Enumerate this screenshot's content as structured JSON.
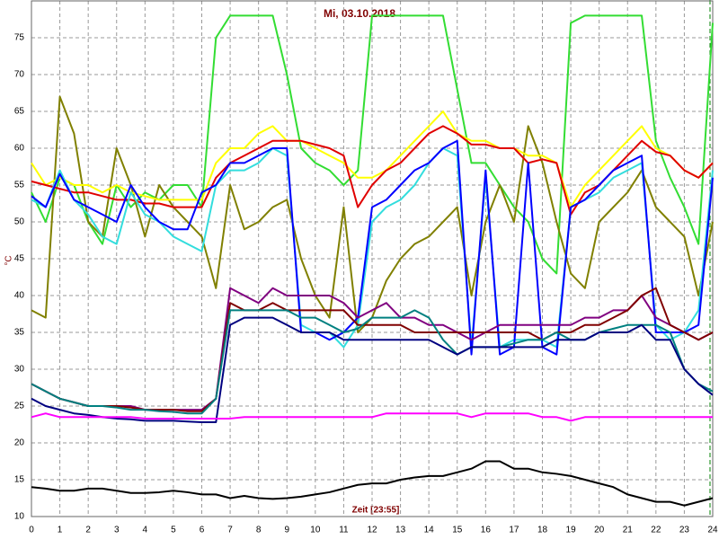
{
  "chart_data": {
    "type": "line",
    "title": "Mi, 03.10.2018",
    "x_label": "Zeit [23:55]",
    "y_label": "°C",
    "x": [
      0,
      0.5,
      1,
      1.5,
      2,
      2.5,
      3,
      3.5,
      4,
      4.5,
      5,
      5.5,
      6,
      6.5,
      7,
      7.5,
      8,
      8.5,
      9,
      9.5,
      10,
      10.5,
      11,
      11.5,
      12,
      12.5,
      13,
      13.5,
      14,
      14.5,
      15,
      15.5,
      16,
      16.5,
      17,
      17.5,
      18,
      18.5,
      19,
      19.5,
      20,
      20.5,
      21,
      21.5,
      22,
      22.5,
      23,
      23.5,
      24
    ],
    "xlim": [
      0,
      24
    ],
    "xticks": [
      0,
      1,
      2,
      3,
      4,
      5,
      6,
      7,
      8,
      9,
      10,
      11,
      12,
      13,
      14,
      15,
      16,
      17,
      18,
      19,
      20,
      21,
      22,
      23,
      24
    ],
    "ylim": [
      10,
      80
    ],
    "yticks": [
      10,
      15,
      20,
      25,
      30,
      35,
      40,
      45,
      50,
      55,
      60,
      65,
      70,
      75
    ],
    "grid": true,
    "series": [
      {
        "color": "#33dd33",
        "values": [
          54,
          50,
          56,
          55,
          50,
          47,
          55,
          52,
          54,
          53,
          55,
          55,
          52,
          75,
          78,
          78,
          78,
          78,
          70,
          60,
          58,
          57,
          55,
          57,
          78,
          78,
          78,
          78,
          78,
          78,
          68,
          58,
          58,
          55,
          52,
          50,
          45,
          43,
          77,
          78,
          78,
          78,
          78,
          78,
          61,
          56,
          52,
          47,
          77
        ]
      },
      {
        "color": "#808000",
        "values": [
          38,
          37,
          67,
          62,
          50,
          48,
          60,
          55,
          48,
          55,
          52,
          50,
          48,
          41,
          55,
          49,
          50,
          52,
          53,
          45,
          40,
          37,
          52,
          35,
          37,
          42,
          45,
          47,
          48,
          50,
          52,
          40,
          50,
          55,
          50,
          63,
          58,
          50,
          43,
          41,
          50,
          52,
          54,
          57,
          52,
          50,
          48,
          40,
          50
        ]
      },
      {
        "color": "#ffff00",
        "values": [
          58,
          55,
          56,
          55,
          55,
          54,
          55,
          54,
          53.5,
          53,
          53,
          53,
          53,
          58,
          60,
          60,
          62,
          63,
          61,
          61,
          60,
          59,
          58,
          56,
          56,
          57,
          59,
          61,
          63,
          65,
          62,
          61,
          61,
          60,
          60,
          59,
          59,
          58,
          52,
          55,
          57,
          59,
          61,
          63,
          60,
          59,
          57,
          56,
          58
        ]
      },
      {
        "color": "#e00000",
        "values": [
          55.5,
          55,
          54.5,
          54,
          54,
          53.5,
          53,
          53,
          52.5,
          52.5,
          52,
          52,
          52,
          56,
          58,
          59,
          60,
          61,
          61,
          61,
          60.5,
          60,
          59,
          52,
          55,
          57,
          58,
          60,
          62,
          63,
          62,
          60.5,
          60.5,
          60,
          60,
          58,
          58.5,
          58,
          51,
          54,
          55,
          57,
          59,
          61,
          59.5,
          59,
          57,
          56,
          58
        ]
      },
      {
        "color": "#33dddd",
        "values": [
          53,
          52,
          57,
          53,
          51,
          48,
          47,
          54,
          51,
          50,
          48,
          47,
          46,
          55,
          57,
          57,
          58,
          60,
          59,
          36,
          35,
          35,
          33,
          36,
          50,
          52,
          53,
          55,
          58,
          60,
          59,
          33,
          56,
          33,
          34,
          34,
          34,
          33,
          52,
          53,
          54,
          56,
          57,
          58,
          36,
          34,
          35,
          38,
          57
        ]
      },
      {
        "color": "#0000ff",
        "values": [
          53.5,
          52,
          56.5,
          53,
          52,
          51,
          50,
          55,
          52,
          50,
          49,
          49,
          54,
          55,
          58,
          58,
          59,
          60,
          60,
          35,
          35,
          34,
          35,
          37,
          52,
          53,
          55,
          57,
          58,
          60,
          61,
          32,
          57,
          32,
          33,
          58,
          33,
          32,
          52,
          53,
          55,
          57,
          58,
          59,
          35,
          35,
          35,
          36,
          56
        ]
      },
      {
        "color": "#800080",
        "values": [
          28,
          27,
          26,
          25.5,
          25,
          25,
          25,
          25,
          24.5,
          24.5,
          24.5,
          24.5,
          24.5,
          26,
          41,
          40,
          39,
          41,
          40,
          40,
          40,
          40,
          39,
          37,
          38,
          39,
          37,
          37,
          36,
          36,
          35,
          34,
          35,
          36,
          36,
          36,
          36,
          36,
          36,
          37,
          37,
          38,
          38,
          40,
          37,
          36,
          35,
          34,
          35
        ]
      },
      {
        "color": "#800000",
        "values": [
          28,
          27,
          26,
          25.5,
          25,
          25,
          25,
          24.8,
          24.5,
          24.5,
          24.5,
          24.3,
          24.3,
          26,
          39,
          38,
          38,
          39,
          38,
          38,
          38,
          38,
          38,
          36,
          36,
          36,
          36,
          35,
          35,
          35,
          35,
          35,
          35,
          35,
          35,
          35,
          34,
          35,
          35,
          36,
          36,
          37,
          38,
          40,
          41,
          36,
          35,
          34,
          35
        ]
      },
      {
        "color": "#008080",
        "values": [
          28,
          27,
          26,
          25.5,
          25,
          25,
          24.8,
          24.5,
          24.5,
          24.3,
          24.2,
          24,
          24,
          26,
          38,
          38,
          38,
          38,
          38,
          37,
          37,
          36,
          35,
          35.5,
          37,
          37,
          37,
          38,
          37,
          34,
          32,
          33,
          33,
          33,
          33.5,
          34,
          34,
          35,
          34,
          34,
          35,
          35.5,
          36,
          36,
          36,
          35,
          30,
          28,
          27
        ]
      },
      {
        "color": "#000080",
        "values": [
          26,
          25,
          24.5,
          24,
          23.8,
          23.5,
          23.3,
          23.2,
          23,
          23,
          23,
          22.9,
          22.8,
          22.8,
          36,
          37,
          37,
          37,
          36,
          35,
          35,
          35,
          34,
          34,
          34,
          34,
          34,
          34,
          34,
          33,
          32,
          33,
          33,
          33,
          33,
          33,
          33,
          34,
          34,
          34,
          35,
          35,
          35,
          36,
          34,
          34,
          30,
          28,
          26.5
        ]
      },
      {
        "color": "#ff00ff",
        "values": [
          23.5,
          24,
          23.5,
          23.5,
          23.5,
          23.5,
          23.5,
          23.5,
          23.3,
          23.3,
          23.3,
          23.3,
          23.3,
          23.3,
          23.3,
          23.5,
          23.5,
          23.5,
          23.5,
          23.5,
          23.5,
          23.5,
          23.5,
          23.5,
          23.5,
          24,
          24,
          24,
          24,
          24,
          24,
          23.5,
          24,
          24,
          24,
          24,
          23.5,
          23.5,
          23,
          23.5,
          23.5,
          23.5,
          23.5,
          23.5,
          23.5,
          23.5,
          23.5,
          23.5,
          23.5
        ]
      },
      {
        "color": "#000000",
        "values": [
          14,
          13.8,
          13.5,
          13.5,
          13.8,
          13.8,
          13.5,
          13.2,
          13.2,
          13.3,
          13.5,
          13.3,
          13,
          13,
          12.5,
          12.8,
          12.5,
          12.4,
          12.5,
          12.7,
          13,
          13.3,
          13.8,
          14.3,
          14.5,
          14.5,
          15,
          15.3,
          15.5,
          15.5,
          16,
          16.5,
          17.5,
          17.5,
          16.5,
          16.5,
          16,
          15.8,
          15.5,
          15,
          14.5,
          14,
          13,
          12.5,
          12,
          12,
          11.5,
          12,
          12.5
        ]
      }
    ]
  }
}
